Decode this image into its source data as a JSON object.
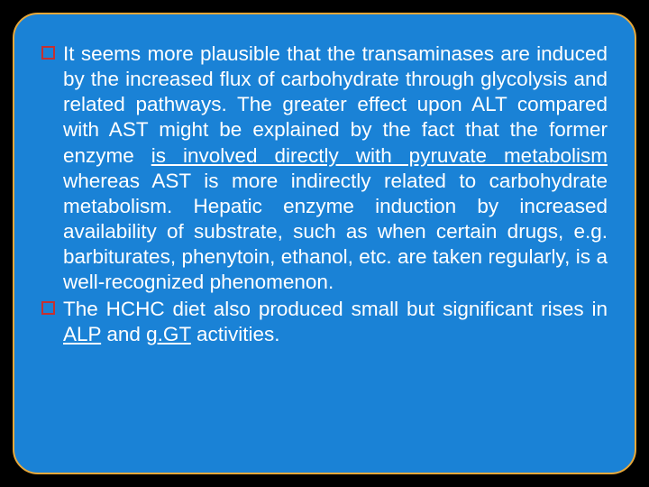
{
  "slide": {
    "background_color": "#1a82d6",
    "border_color": "#e8a83a",
    "border_radius": 28,
    "outer_background": "#000000",
    "text_color": "#ffffff",
    "bullet_border_color": "#c53030",
    "font_size": 22.5,
    "paragraphs": [
      {
        "segments": [
          {
            "text": "It seems more plausible that the transaminases are induced by the increased flux of carbohydrate through glycolysis and related pathways. The greater effect upon ALT compared with AST might be explained by the fact that the former enzyme ",
            "underline": false
          },
          {
            "text": "is involved directly with pyruvate metabolism",
            "underline": true
          },
          {
            "text": " whereas AST is more indirectly related to carbohydrate metabolism. Hepatic enzyme induction by increased availability of substrate, such as when certain drugs, e.g. barbiturates, phenytoin, ethanol, etc. are taken regularly, is a well-recognized phenomenon.",
            "underline": false
          }
        ]
      },
      {
        "segments": [
          {
            "text": "The HCHC diet also produced small but significant rises in ",
            "underline": false
          },
          {
            "text": "ALP",
            "underline": true
          },
          {
            "text": " and ",
            "underline": false
          },
          {
            "text": "g.GT",
            "underline": true
          },
          {
            "text": " activities.",
            "underline": false
          }
        ]
      }
    ]
  }
}
